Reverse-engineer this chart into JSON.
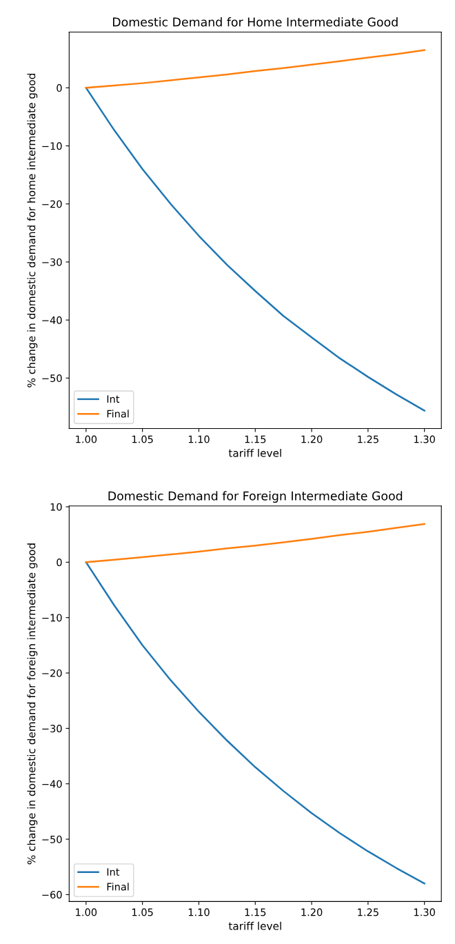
{
  "chart_data": [
    {
      "type": "line",
      "title": "Domestic Demand for Home Intermediate Good",
      "xlabel": "tariff level",
      "ylabel": "% change in domestic demand for home intermediate good",
      "x": [
        1.0,
        1.025,
        1.05,
        1.075,
        1.1,
        1.125,
        1.15,
        1.175,
        1.2,
        1.225,
        1.25,
        1.275,
        1.3
      ],
      "series": [
        {
          "name": "Int",
          "color": "#1f77b4",
          "values": [
            0,
            -7.3,
            -14,
            -20,
            -25.5,
            -30.5,
            -35,
            -39.3,
            -43,
            -46.6,
            -49.8,
            -52.8,
            -55.6
          ]
        },
        {
          "name": "Final",
          "color": "#ff7f0e",
          "values": [
            0,
            0.4,
            0.8,
            1.3,
            1.8,
            2.3,
            2.9,
            3.4,
            4.0,
            4.6,
            5.2,
            5.8,
            6.5
          ]
        }
      ],
      "xlim": [
        0.985,
        1.315
      ],
      "xticks": [
        {
          "value": 1.0,
          "label": "1.00"
        },
        {
          "value": 1.05,
          "label": "1.05"
        },
        {
          "value": 1.1,
          "label": "1.10"
        },
        {
          "value": 1.15,
          "label": "1.15"
        },
        {
          "value": 1.2,
          "label": "1.20"
        },
        {
          "value": 1.25,
          "label": "1.25"
        },
        {
          "value": 1.3,
          "label": "1.30"
        }
      ],
      "ylim": [
        -58.7,
        9.6
      ],
      "yticks": [
        {
          "value": -50,
          "label": "−50"
        },
        {
          "value": -40,
          "label": "−40"
        },
        {
          "value": -30,
          "label": "−30"
        },
        {
          "value": -20,
          "label": "−20"
        },
        {
          "value": -10,
          "label": "−10"
        },
        0
      ],
      "legend": "bottom left",
      "grid": false
    },
    {
      "type": "line",
      "title": "Domestic Demand for Foreign Intermediate Good",
      "xlabel": "tariff level",
      "ylabel": "% change in domestic demand for foreign intermediate good",
      "x": [
        1.0,
        1.025,
        1.05,
        1.075,
        1.1,
        1.125,
        1.15,
        1.175,
        1.2,
        1.225,
        1.25,
        1.275,
        1.3
      ],
      "series": [
        {
          "name": "Int",
          "color": "#1f77b4",
          "values": [
            0,
            -7.8,
            -15,
            -21.3,
            -27,
            -32.2,
            -37,
            -41.3,
            -45.3,
            -48.9,
            -52.2,
            -55.2,
            -58
          ]
        },
        {
          "name": "Final",
          "color": "#ff7f0e",
          "values": [
            0,
            0.45,
            0.9,
            1.4,
            1.9,
            2.5,
            3.0,
            3.6,
            4.2,
            4.9,
            5.5,
            6.2,
            6.9
          ]
        }
      ],
      "xlim": [
        0.985,
        1.315
      ],
      "xticks": [
        {
          "value": 1.0,
          "label": "1.00"
        },
        {
          "value": 1.05,
          "label": "1.05"
        },
        {
          "value": 1.1,
          "label": "1.10"
        },
        {
          "value": 1.15,
          "label": "1.15"
        },
        {
          "value": 1.2,
          "label": "1.20"
        },
        {
          "value": 1.25,
          "label": "1.25"
        },
        {
          "value": 1.3,
          "label": "1.30"
        }
      ],
      "ylim": [
        -61.25,
        10.15
      ],
      "yticks": [
        {
          "value": -60,
          "label": "−60"
        },
        {
          "value": -50,
          "label": "−50"
        },
        {
          "value": -40,
          "label": "−40"
        },
        {
          "value": -30,
          "label": "−30"
        },
        {
          "value": -20,
          "label": "−20"
        },
        {
          "value": -10,
          "label": "−10"
        },
        0,
        10
      ],
      "legend": "bottom left",
      "grid": false
    }
  ]
}
